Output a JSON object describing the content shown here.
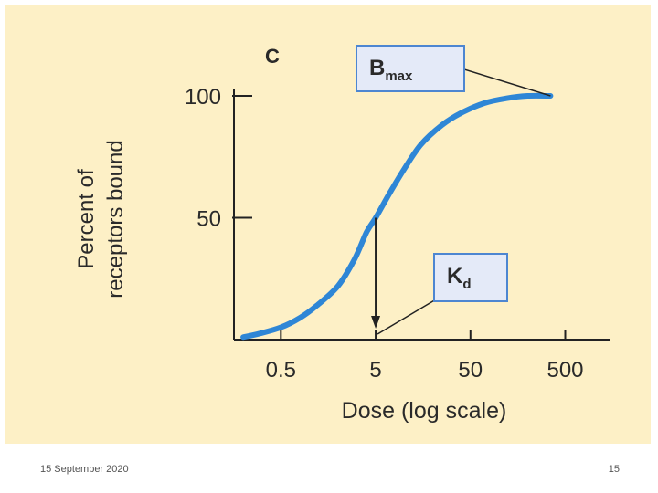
{
  "slide": {
    "date": "15 September 2020",
    "page_number": "15"
  },
  "colors": {
    "background": "#FDF0C6",
    "curve": "#2E86D6",
    "callout_fill": "#E4EAF8",
    "callout_border": "#4D86D1",
    "axis": "#222222"
  },
  "chart_data": {
    "type": "line",
    "panel_label": "C",
    "xlabel": "Dose (log scale)",
    "ylabel_lines": [
      "Percent of",
      "receptors bound"
    ],
    "xscale": "log",
    "xlim": [
      0.16,
      1500
    ],
    "ylim": [
      0,
      100
    ],
    "x_ticks": [
      {
        "value": 0.5,
        "label": "0.5"
      },
      {
        "value": 5,
        "label": "5"
      },
      {
        "value": 50,
        "label": "50"
      },
      {
        "value": 500,
        "label": "500"
      }
    ],
    "y_ticks": [
      {
        "value": 100,
        "label": "100"
      },
      {
        "value": 50,
        "label": "50"
      }
    ],
    "series": [
      {
        "x": [
          0.2,
          0.3,
          0.5,
          0.8,
          1.2,
          2,
          3,
          4,
          5,
          7,
          10,
          15,
          25,
          40,
          70,
          120,
          200,
          350
        ],
        "y": [
          1,
          2.5,
          5,
          9,
          14,
          22,
          33,
          44,
          50,
          60,
          70,
          80,
          88,
          93,
          97,
          99,
          100,
          100
        ]
      }
    ],
    "annotations": [
      {
        "label": "B",
        "subscript": "max",
        "x": 350,
        "y": 100,
        "meaning": "Bmax"
      },
      {
        "label": "K",
        "subscript": "d",
        "x": 5,
        "y": 50,
        "meaning": "Kd"
      }
    ]
  }
}
